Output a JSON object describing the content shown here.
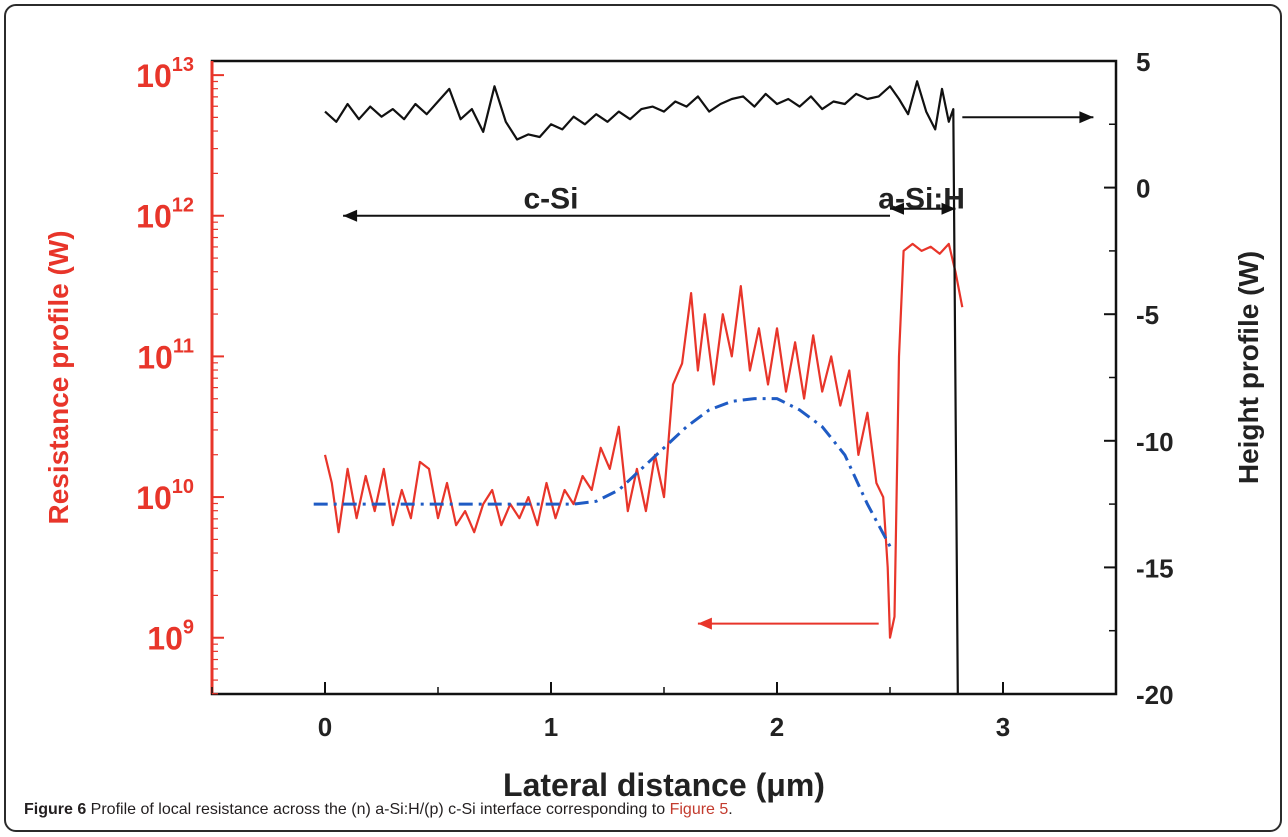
{
  "chart_data": {
    "type": "line",
    "xlabel": "Lateral distance (μm)",
    "ylabel_left": "Resistance profile (W)",
    "ylabel_right": "Height profile (W)",
    "xlim": [
      -0.5,
      3.5
    ],
    "x_ticks": [
      0,
      1,
      2,
      3
    ],
    "x_tick_labels": [
      "0",
      "1",
      "2",
      "3"
    ],
    "ylim_left_log10": [
      8.6,
      13.1
    ],
    "y_left_ticks": [
      {
        "exp": 13,
        "label": "10",
        "sup": "13"
      },
      {
        "exp": 12,
        "label": "10",
        "sup": "12"
      },
      {
        "exp": 11,
        "label": "10",
        "sup": "11"
      },
      {
        "exp": 10,
        "label": "10",
        "sup": "10"
      },
      {
        "exp": 9,
        "label": "10",
        "sup": "9"
      }
    ],
    "ylim_right": [
      -20,
      5
    ],
    "y_right_ticks": [
      5,
      0,
      -5,
      -10,
      -15,
      -20
    ],
    "y_right_tick_labels": [
      "5",
      "0",
      "-5",
      "-10",
      "-15",
      "-20"
    ],
    "series": [
      {
        "axis": "left",
        "color": "#e8352a",
        "style": "solid",
        "x": [
          0.0,
          0.03,
          0.06,
          0.1,
          0.14,
          0.18,
          0.22,
          0.26,
          0.3,
          0.34,
          0.38,
          0.42,
          0.46,
          0.5,
          0.54,
          0.58,
          0.62,
          0.66,
          0.7,
          0.74,
          0.78,
          0.82,
          0.86,
          0.9,
          0.94,
          0.98,
          1.02,
          1.06,
          1.1,
          1.14,
          1.18,
          1.22,
          1.26,
          1.3,
          1.34,
          1.38,
          1.42,
          1.46,
          1.5,
          1.54,
          1.58,
          1.62,
          1.65,
          1.68,
          1.72,
          1.76,
          1.8,
          1.84,
          1.88,
          1.92,
          1.96,
          2.0,
          2.04,
          2.08,
          2.12,
          2.16,
          2.2,
          2.24,
          2.28,
          2.32,
          2.36,
          2.4,
          2.44,
          2.47,
          2.49,
          2.5,
          2.52,
          2.54,
          2.56,
          2.6,
          2.64,
          2.68,
          2.72,
          2.76,
          2.79,
          2.82
        ],
        "log10_y": [
          10.3,
          10.1,
          9.75,
          10.2,
          9.85,
          10.15,
          9.9,
          10.2,
          9.8,
          10.05,
          9.85,
          10.25,
          10.2,
          9.85,
          10.1,
          9.8,
          9.9,
          9.75,
          9.95,
          10.05,
          9.8,
          9.95,
          9.85,
          10.0,
          9.8,
          10.1,
          9.85,
          10.05,
          9.95,
          10.15,
          10.05,
          10.35,
          10.2,
          10.5,
          9.9,
          10.2,
          9.9,
          10.3,
          10.0,
          10.8,
          10.95,
          11.45,
          10.9,
          11.3,
          10.8,
          11.3,
          11.0,
          11.5,
          10.9,
          11.2,
          10.8,
          11.2,
          10.75,
          11.1,
          10.7,
          11.15,
          10.75,
          11.0,
          10.65,
          10.9,
          10.3,
          10.6,
          10.1,
          10.0,
          9.5,
          9.0,
          9.15,
          11.0,
          11.75,
          11.8,
          11.75,
          11.78,
          11.73,
          11.8,
          11.6,
          11.35
        ]
      },
      {
        "axis": "left",
        "color": "#1f5bc4",
        "style": "dash-dot",
        "x": [
          -0.05,
          0.2,
          0.5,
          0.8,
          1.0,
          1.1,
          1.2,
          1.3,
          1.4,
          1.5,
          1.6,
          1.7,
          1.8,
          1.9,
          2.0,
          2.1,
          2.2,
          2.3,
          2.4,
          2.5
        ],
        "log10_y": [
          9.95,
          9.95,
          9.95,
          9.95,
          9.95,
          9.95,
          9.97,
          10.05,
          10.2,
          10.35,
          10.5,
          10.62,
          10.68,
          10.7,
          10.7,
          10.62,
          10.5,
          10.3,
          9.95,
          9.65
        ]
      },
      {
        "axis": "right",
        "color": "#111111",
        "style": "solid",
        "x": [
          0.0,
          0.05,
          0.1,
          0.15,
          0.2,
          0.25,
          0.3,
          0.35,
          0.4,
          0.45,
          0.5,
          0.55,
          0.6,
          0.65,
          0.7,
          0.75,
          0.8,
          0.85,
          0.9,
          0.95,
          1.0,
          1.05,
          1.1,
          1.15,
          1.2,
          1.25,
          1.3,
          1.35,
          1.4,
          1.45,
          1.5,
          1.55,
          1.6,
          1.65,
          1.7,
          1.75,
          1.8,
          1.85,
          1.9,
          1.95,
          2.0,
          2.05,
          2.1,
          2.15,
          2.2,
          2.25,
          2.3,
          2.35,
          2.4,
          2.45,
          2.5,
          2.54,
          2.58,
          2.62,
          2.66,
          2.7,
          2.73,
          2.76,
          2.78,
          2.8
        ],
        "y": [
          3.0,
          2.6,
          3.3,
          2.7,
          3.2,
          2.8,
          3.1,
          2.7,
          3.3,
          2.9,
          3.4,
          3.9,
          2.7,
          3.1,
          2.2,
          4.0,
          2.6,
          1.9,
          2.1,
          2.0,
          2.5,
          2.3,
          2.8,
          2.5,
          2.9,
          2.6,
          3.0,
          2.7,
          3.1,
          3.2,
          3.0,
          3.4,
          3.2,
          3.6,
          3.0,
          3.3,
          3.5,
          3.6,
          3.2,
          3.7,
          3.3,
          3.5,
          3.2,
          3.6,
          3.1,
          3.4,
          3.3,
          3.7,
          3.5,
          3.6,
          4.0,
          3.5,
          2.9,
          4.2,
          3.0,
          2.3,
          3.9,
          2.6,
          3.1,
          -20.0
        ]
      }
    ],
    "annotations": [
      {
        "text": "c-Si",
        "x": 1.0,
        "log10_y": 12.05
      },
      {
        "text": "a-Si:H",
        "x": 2.64,
        "log10_y": 12.05
      }
    ],
    "arrows": [
      {
        "from": [
          2.5,
          12.0
        ],
        "to": [
          0.08,
          12.0
        ],
        "color": "#111111",
        "axis": "left"
      },
      {
        "from": [
          2.5,
          12.05
        ],
        "to": [
          2.79,
          12.05
        ],
        "color": "#111111",
        "axis": "left",
        "both": true
      },
      {
        "from": [
          2.82,
          12.7
        ],
        "to": [
          3.4,
          12.7
        ],
        "color": "#111111",
        "axis": "left"
      },
      {
        "from": [
          2.45,
          9.1
        ],
        "to": [
          1.65,
          9.1
        ],
        "color": "#e8352a",
        "axis": "left"
      }
    ]
  },
  "caption": {
    "figure_label": "Figure 6",
    "text_before": " Profile of local resistance across the (n) a-Si:H/(p) c-Si interface corresponding to ",
    "ref": "Figure 5",
    "text_after": "."
  }
}
